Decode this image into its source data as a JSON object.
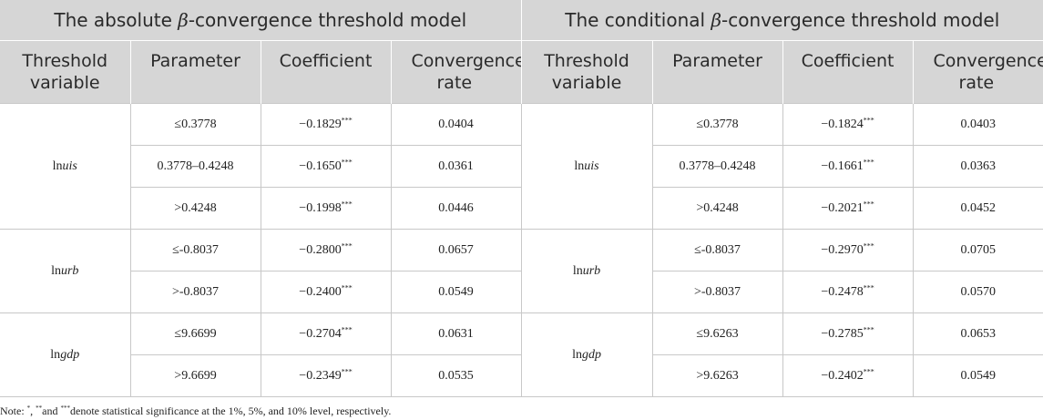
{
  "header": {
    "group_left_prefix": "The absolute ",
    "group_left_symbol": "β",
    "group_left_suffix": "-convergence threshold model",
    "group_right_prefix": "The conditional ",
    "group_right_symbol": "β",
    "group_right_suffix": "-convergence threshold model",
    "col_threshold_line1": "Threshold",
    "col_threshold_line2": "variable",
    "col_parameter": "Parameter",
    "col_coefficient": "Coefficient",
    "col_rate_line1": "Convergence",
    "col_rate_line2": "rate"
  },
  "significance_mark": "***",
  "groups": [
    {
      "var_prefix": "ln",
      "var_italic": "uis",
      "rows": [
        {
          "abs_param": "≤0.3778",
          "abs_coef": "−0.1829",
          "abs_rate": "0.0404",
          "cond_param": "≤0.3778",
          "cond_coef": "−0.1824",
          "cond_rate": "0.0403"
        },
        {
          "abs_param": "0.3778–0.4248",
          "abs_coef": "−0.1650",
          "abs_rate": "0.0361",
          "cond_param": "0.3778–0.4248",
          "cond_coef": "−0.1661",
          "cond_rate": "0.0363"
        },
        {
          "abs_param": ">0.4248",
          "abs_coef": "−0.1998",
          "abs_rate": "0.0446",
          "cond_param": ">0.4248",
          "cond_coef": "−0.2021",
          "cond_rate": "0.0452"
        }
      ]
    },
    {
      "var_prefix": "ln",
      "var_italic": "urb",
      "rows": [
        {
          "abs_param": "≤-0.8037",
          "abs_coef": "−0.2800",
          "abs_rate": "0.0657",
          "cond_param": "≤-0.8037",
          "cond_coef": "−0.2970",
          "cond_rate": "0.0705"
        },
        {
          "abs_param": ">-0.8037",
          "abs_coef": "−0.2400",
          "abs_rate": "0.0549",
          "cond_param": ">-0.8037",
          "cond_coef": "−0.2478",
          "cond_rate": "0.0570"
        }
      ]
    },
    {
      "var_prefix": "ln",
      "var_italic": "gdp",
      "rows": [
        {
          "abs_param": "≤9.6699",
          "abs_coef": "−0.2704",
          "abs_rate": "0.0631",
          "cond_param": "≤9.6263",
          "cond_coef": "−0.2785",
          "cond_rate": "0.0653"
        },
        {
          "abs_param": ">9.6699",
          "abs_coef": "−0.2349",
          "abs_rate": "0.0535",
          "cond_param": ">9.6263",
          "cond_coef": "−0.2402",
          "cond_rate": "0.0549"
        }
      ]
    }
  ],
  "note": {
    "prefix": "Note: ",
    "mark1": "*",
    "sep1": ", ",
    "mark2": "**",
    "sep2": "and ",
    "mark3": "***",
    "text": "denote statistical significance at the 1%, 5%, and 10% level, respectively."
  }
}
